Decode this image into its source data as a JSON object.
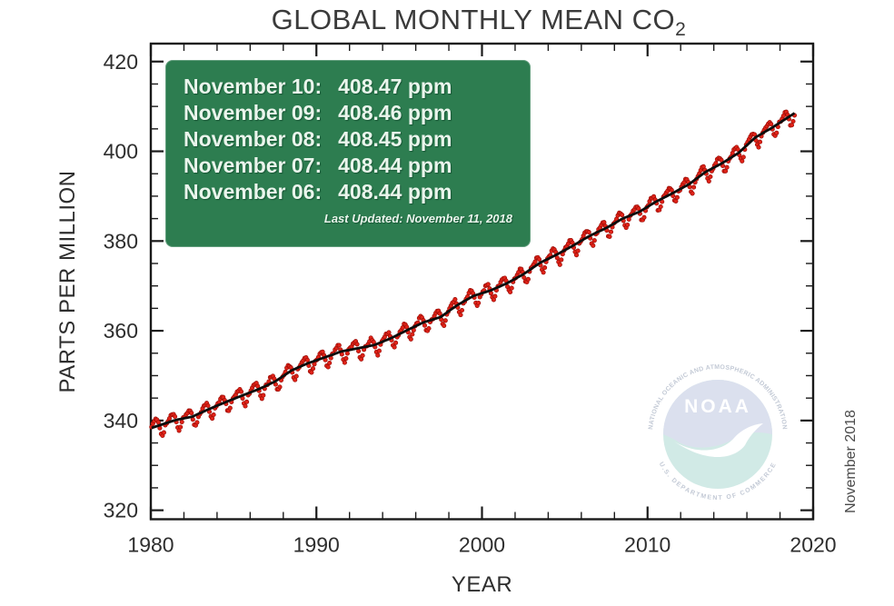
{
  "title": {
    "text": "GLOBAL MONTHLY MEAN CO",
    "subscript": "2"
  },
  "axes": {
    "x_label": "YEAR",
    "y_label": "PARTS PER MILLION"
  },
  "overlay": {
    "bg_color": "#2d7d50",
    "text_color": "#eaf5ec",
    "readings": [
      {
        "date": "November 10:",
        "value": "408.47 ppm"
      },
      {
        "date": "November 09:",
        "value": "408.46 ppm"
      },
      {
        "date": "November 08:",
        "value": "408.45 ppm"
      },
      {
        "date": "November 07:",
        "value": "408.44 ppm"
      },
      {
        "date": "November 06:",
        "value": "408.44 ppm"
      }
    ],
    "last_updated": "Last Updated: November 11, 2018"
  },
  "annotations": {
    "right_label": "November 2018"
  },
  "watermark": {
    "wordmark": "NOAA",
    "ring_top": "NATIONAL OCEANIC AND ATMOSPHERIC ADMINISTRATION",
    "ring_bottom": "U.S. DEPARTMENT OF COMMERCE",
    "top_color": "#93a2cc",
    "bottom_color": "#74bfb2",
    "ring_text_color": "#44597e",
    "opacity": 0.32
  },
  "chart_data": {
    "type": "scatter",
    "title": "GLOBAL MONTHLY MEAN CO2",
    "xlabel": "YEAR",
    "ylabel": "PARTS PER MILLION",
    "xlim": [
      1980,
      2020
    ],
    "ylim": [
      318,
      424
    ],
    "x_ticks": [
      1980,
      1990,
      2000,
      2010,
      2020
    ],
    "y_ticks": [
      320,
      340,
      360,
      380,
      400,
      420
    ],
    "x_minor_step": 2,
    "y_minor_step": 5,
    "grid": false,
    "legend": "none",
    "point_color": "#e02318",
    "point_edge_color": "#9a0c06",
    "trend_color": "#0d0d0d",
    "axis_color": "#1a1a1a",
    "tick_label_color": "#2e2e2e",
    "annual_trend": {
      "years": [
        1980,
        1981,
        1982,
        1983,
        1984,
        1985,
        1986,
        1987,
        1988,
        1989,
        1990,
        1991,
        1992,
        1993,
        1994,
        1995,
        1996,
        1997,
        1998,
        1999,
        2000,
        2001,
        2002,
        2003,
        2004,
        2005,
        2006,
        2007,
        2008,
        2009,
        2010,
        2011,
        2012,
        2013,
        2014,
        2015,
        2016,
        2017,
        2018
      ],
      "ppm": [
        338.91,
        340.11,
        340.86,
        342.53,
        344.07,
        345.54,
        346.97,
        348.68,
        351.16,
        352.79,
        354.06,
        355.39,
        356.09,
        356.83,
        358.33,
        360.18,
        361.93,
        363.05,
        365.7,
        367.8,
        368.96,
        370.57,
        372.59,
        375.14,
        376.95,
        378.98,
        381.15,
        382.9,
        385.02,
        386.5,
        388.76,
        390.63,
        392.65,
        395.4,
        397.34,
        399.65,
        403.07,
        405.22,
        407.61
      ]
    },
    "seasonal_cycle_ppm": [
      0.3,
      0.7,
      1.2,
      1.5,
      1.4,
      0.7,
      -0.6,
      -1.9,
      -2.4,
      -1.7,
      -0.5,
      0.0
    ],
    "series_start": "1980-01",
    "series_end": "2018-11",
    "points_per_year": 12,
    "final_monthly_value_ppm": 408.5
  }
}
